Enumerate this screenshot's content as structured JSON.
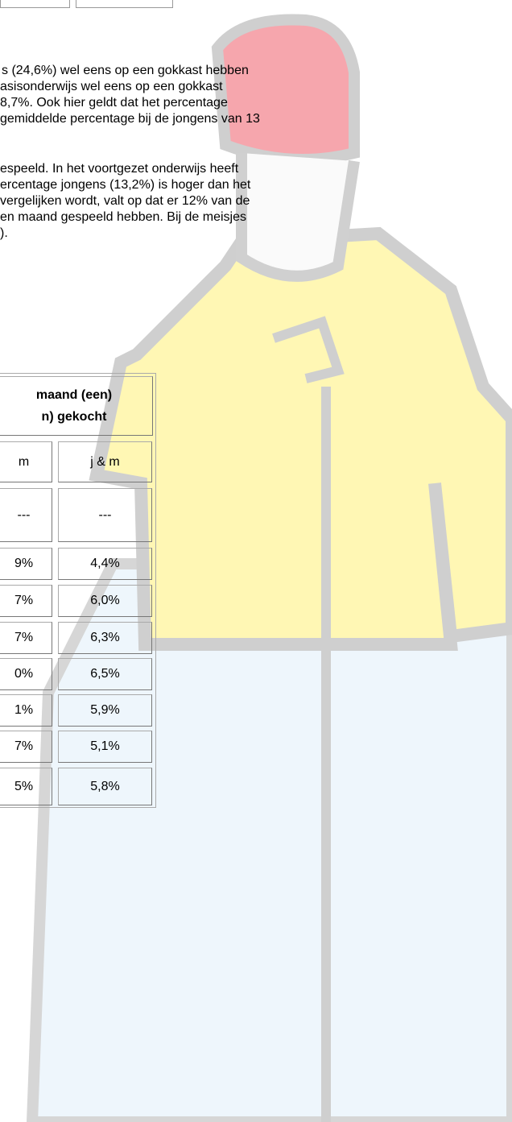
{
  "paragraph": {
    "lines": [
      "s (24,6%) wel eens op een gokkast hebben",
      "asisonderwijs wel eens op een gokkast",
      "8,7%. Ook hier geldt dat het percentage",
      "gemiddelde percentage bij de jongens van 13",
      "espeeld. In het voortgezet onderwijs heeft",
      "ercentage jongens (13,2%) is hoger dan het",
      "vergelijken wordt, valt op dat er 12% van de",
      "en maand gespeeld hebben. Bij de meisjes",
      ")."
    ]
  },
  "table": {
    "header": [
      "maand (een)",
      "n) gekocht"
    ],
    "columns": [
      "m",
      "j & m"
    ],
    "rows": [
      [
        "---",
        "---"
      ],
      [
        "9%",
        "4,4%"
      ],
      [
        "7%",
        "6,0%"
      ],
      [
        "7%",
        "6,3%"
      ],
      [
        "0%",
        "6,5%"
      ],
      [
        "1%",
        "5,9%"
      ],
      [
        "7%",
        "5,1%"
      ],
      [
        "5%",
        "5,8%"
      ]
    ]
  }
}
